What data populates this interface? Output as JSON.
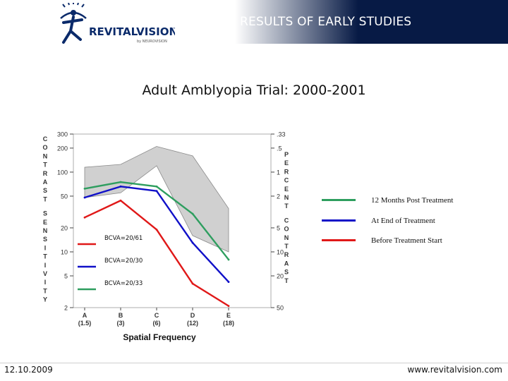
{
  "header": {
    "title": "RESULTS OF EARLY STUDIES",
    "logo_text": "REVITALVISION",
    "logo_tm": "™",
    "logo_sub": "by NEUROVISION",
    "band_color": "#071a45"
  },
  "subtitle": "Adult Amblyopia Trial: 2000-2001",
  "chart_data": {
    "type": "line",
    "xlabel": "Spatial Frequency",
    "categories": [
      "A",
      "B",
      "C",
      "D",
      "E"
    ],
    "category_sublabels": [
      "(1.5)",
      "(3)",
      "(6)",
      "(12)",
      "(18)"
    ],
    "left_axis_label": "CONTRAST SENSITIVITY",
    "right_axis_label": "PERCENT CONTRAST",
    "y_scale": "log",
    "ylim": [
      2,
      300
    ],
    "left_ticks": [
      "300",
      "200",
      "100",
      "50",
      "20",
      "10",
      "5",
      "2"
    ],
    "right_ticks": [
      ".33",
      ".5",
      "1",
      "2",
      "5",
      "10",
      "20",
      "50"
    ],
    "normal_range": {
      "upper": [
        115,
        125,
        210,
        160,
        35
      ],
      "lower": [
        48,
        55,
        120,
        16,
        10
      ]
    },
    "series": [
      {
        "name": "12 Months Post Treatment",
        "color": "#2e9e5f",
        "values": [
          62,
          75,
          66,
          30,
          8
        ]
      },
      {
        "name": "At End of Treatment",
        "color": "#1010c8",
        "values": [
          48,
          66,
          58,
          13,
          4.2
        ]
      },
      {
        "name": "Before Treatment Start",
        "color": "#e01818",
        "values": [
          27,
          44,
          19,
          4,
          2.1
        ]
      }
    ],
    "bcva_labels": [
      {
        "text": "BCVA=20/61",
        "color": "#e01818"
      },
      {
        "text": "BCVA=20/30",
        "color": "#1010c8"
      },
      {
        "text": "BCVA=20/33",
        "color": "#2e9e5f"
      }
    ]
  },
  "footer": {
    "date": "12.10.2009",
    "url": "www.revitalvision.com"
  }
}
